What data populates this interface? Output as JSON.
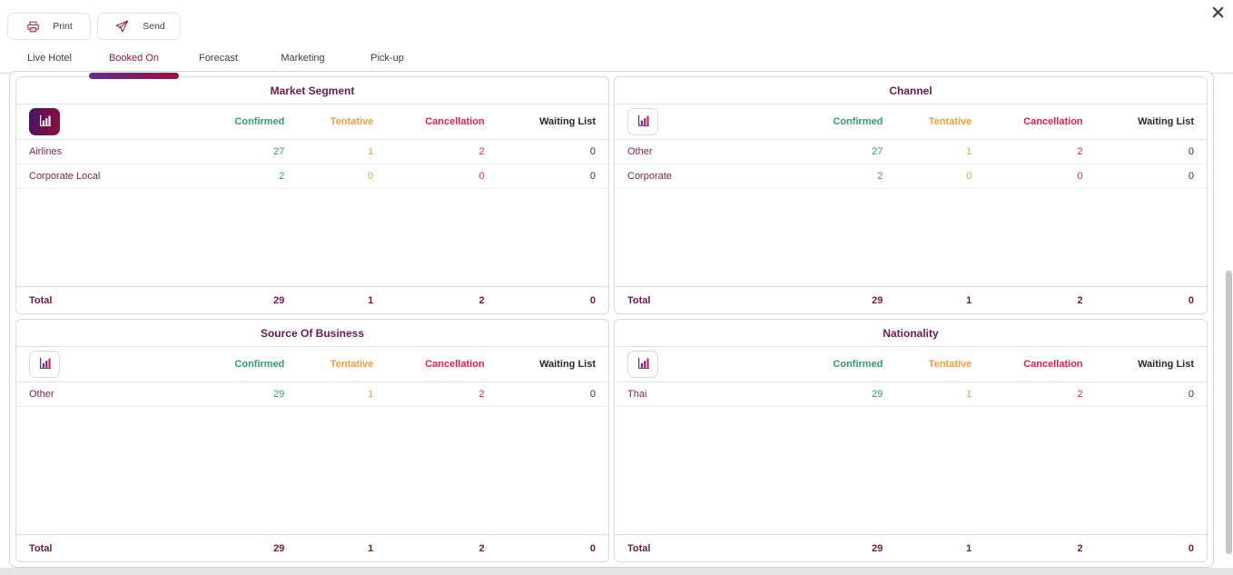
{
  "toolbar": {
    "print_label": "Print",
    "send_label": "Send"
  },
  "tabs": [
    {
      "label": "Live Hotel",
      "active": false
    },
    {
      "label": "Booked On",
      "active": true
    },
    {
      "label": "Forecast",
      "active": false
    },
    {
      "label": "Marketing",
      "active": false
    },
    {
      "label": "Pick-up",
      "active": false
    }
  ],
  "table_columns": [
    "Confirmed",
    "Tentative",
    "Cancellation",
    "Waiting List"
  ],
  "total_label": "Total",
  "panels": [
    {
      "title": "Market Segment",
      "chart_icon": "bar-chart-icon",
      "icon_selected": true,
      "rows": [
        {
          "label": "Airlines",
          "values": [
            "27",
            "1",
            "2",
            "0"
          ]
        },
        {
          "label": "Corporate Local",
          "values": [
            "2",
            "0",
            "0",
            "0"
          ]
        }
      ],
      "total_values": [
        "29",
        "1",
        "2",
        "0"
      ]
    },
    {
      "title": "Channel",
      "chart_icon": "bar-chart-icon",
      "icon_selected": false,
      "rows": [
        {
          "label": "Other",
          "values": [
            "27",
            "1",
            "2",
            "0"
          ]
        },
        {
          "label": "Corporate",
          "values": [
            "2",
            "0",
            "0",
            "0"
          ]
        }
      ],
      "total_values": [
        "29",
        "1",
        "2",
        "0"
      ]
    },
    {
      "title": "Source Of Business",
      "chart_icon": "bar-chart-icon",
      "icon_selected": false,
      "rows": [
        {
          "label": "Other",
          "values": [
            "29",
            "1",
            "2",
            "0"
          ]
        }
      ],
      "total_values": [
        "29",
        "1",
        "2",
        "0"
      ]
    },
    {
      "title": "Nationality",
      "chart_icon": "bar-chart-icon",
      "icon_selected": false,
      "rows": [
        {
          "label": "Thai",
          "values": [
            "29",
            "1",
            "2",
            "0"
          ]
        }
      ],
      "total_values": [
        "29",
        "1",
        "2",
        "0"
      ]
    }
  ],
  "colors": {
    "confirmed": "#2f9e6e",
    "tentative": "#f29b38",
    "cancellation": "#e51d47",
    "waiting_list": "#2a3046",
    "title_maroon": "#6a1b4d",
    "row_label": "#7c2152",
    "total_text": "#6d194a",
    "tab_active": "#9c1044",
    "underline_gradient_start": "#5e2c93",
    "underline_gradient_end": "#a30e44",
    "icon_maroon": "#9c4a74"
  }
}
